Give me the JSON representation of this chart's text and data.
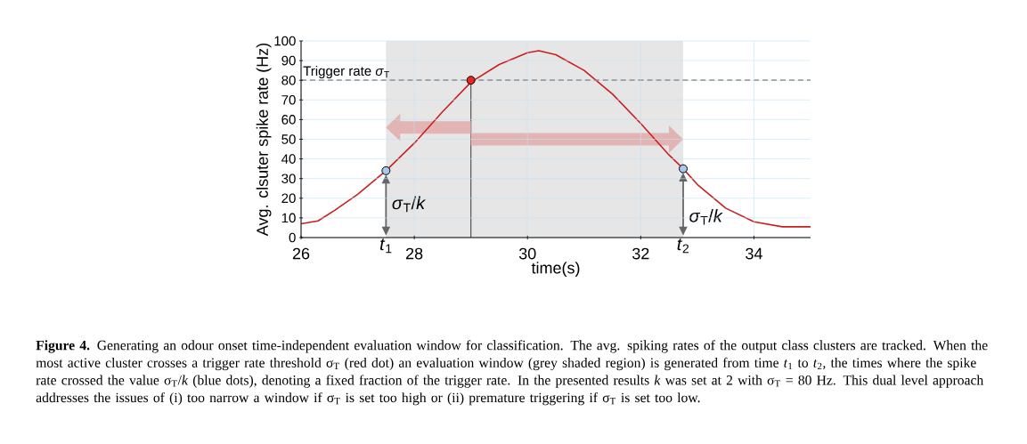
{
  "chart_data": {
    "type": "line",
    "xlabel": "time(s)",
    "ylabel": "Avg. clsuter spike rate (Hz)",
    "xlim": [
      26,
      35
    ],
    "ylim": [
      0,
      100
    ],
    "xticks": [
      26,
      28,
      30,
      32,
      34
    ],
    "yticks": [
      0,
      10,
      20,
      30,
      40,
      50,
      60,
      70,
      80,
      90,
      100
    ],
    "grid": true,
    "series": [
      {
        "color": "#c8201e",
        "marker": "none",
        "line_style": "solid",
        "x": [
          26.0,
          26.3,
          26.6,
          27.0,
          27.5,
          28.0,
          28.5,
          29.0,
          29.5,
          30.0,
          30.2,
          30.5,
          31.0,
          31.5,
          32.0,
          32.5,
          32.75,
          33.0,
          33.5,
          34.0,
          34.5,
          35.0
        ],
        "values": [
          7,
          8.5,
          14,
          22,
          34,
          48,
          64,
          79,
          88,
          94,
          95,
          93,
          85,
          73,
          58,
          42,
          35,
          27,
          15,
          8,
          5.5,
          5.5
        ]
      },
      {
        "type": "scatter",
        "marker": "circle",
        "x": [
          27.5,
          29,
          32.75
        ],
        "values": [
          34,
          80,
          35
        ],
        "colors": [
          "#a8c8f0",
          "#e8281e",
          "#a8c8f0"
        ]
      }
    ],
    "ref_lines": [
      {
        "axis": "y",
        "value": 80,
        "label": "Trigger rate *σ*$_{T}$",
        "color": "#555555",
        "line_style": "dashed"
      },
      {
        "axis": "x",
        "value": 29,
        "color": "#555555",
        "line_style": "solid"
      }
    ],
    "bands": [
      {
        "axis": "x",
        "from": 27.5,
        "to": 32.75,
        "color": "#e6e6e6"
      }
    ],
    "annotations": [
      "**Figure 4.** Generating an odour onset time-independent evaluation window for classification. The avg. spiking rates of the output class clusters are tracked. When the most active cluster crosses a trigger rate threshold σ$_{T}$ (red dot) an evaluation window (grey shaded region) is generated from time *t*$_{1}$ to *t*$_{2}$, the times where the spike rate crossed the value σ$_{T}$/*k* (blue dots), denoting a fixed fraction of the trigger rate. In the presented results *k* was set at 2 with σ$_{T}$ = 80 Hz. This dual level approach addresses the issues of (i) too narrow a window if σ$_{T}$ is set too high or (ii) premature triggering if σ$_{T}$ is set too low.",
      "*t*$_{1}$",
      "*σ*$_{T}$/*k*",
      "*t*$_{2}$",
      "*σ*$_{T}$/*k*"
    ]
  }
}
